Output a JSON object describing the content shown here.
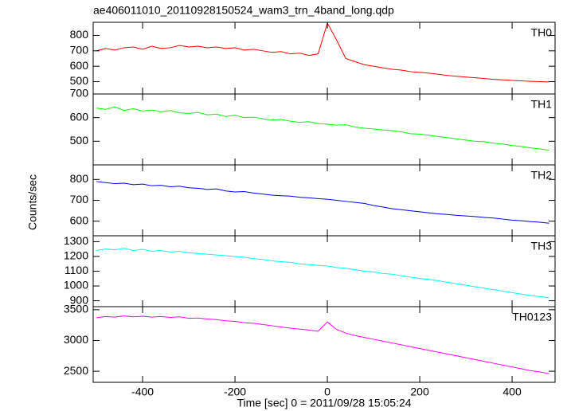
{
  "title": "ae406011010_20110928150524_wam3_trn_4band_long.qdp",
  "x_label": "Time [sec] 0 = 2011/09/28 15:05:24",
  "y_label": "Counts/sec",
  "chart_data": [
    {
      "type": "line",
      "label": "TH0",
      "color": "#ff0000",
      "x": [
        -500,
        -480,
        -460,
        -440,
        -420,
        -400,
        -380,
        -360,
        -340,
        -320,
        -300,
        -280,
        -260,
        -240,
        -220,
        -200,
        -180,
        -160,
        -140,
        -120,
        -100,
        -80,
        -60,
        -40,
        -20,
        0,
        20,
        40,
        60,
        80,
        100,
        120,
        140,
        160,
        180,
        200,
        220,
        240,
        260,
        280,
        300,
        320,
        340,
        360,
        380,
        400,
        420,
        440,
        460,
        480
      ],
      "values": [
        700,
        715,
        705,
        720,
        725,
        710,
        730,
        715,
        720,
        735,
        725,
        730,
        720,
        725,
        715,
        720,
        705,
        710,
        700,
        690,
        695,
        680,
        685,
        670,
        680,
        880,
        770,
        650,
        630,
        610,
        600,
        590,
        580,
        575,
        565,
        560,
        555,
        548,
        540,
        535,
        530,
        525,
        520,
        515,
        512,
        508,
        505,
        502,
        500,
        498
      ],
      "xlim": [
        -507,
        493
      ],
      "xticks": [
        -400,
        -200,
        0,
        200,
        400
      ],
      "ylim": [
        420,
        885
      ],
      "yticks": [
        500,
        600,
        700,
        800
      ]
    },
    {
      "type": "line",
      "label": "TH1",
      "color": "#00ff00",
      "x": [
        -500,
        -480,
        -460,
        -440,
        -420,
        -400,
        -380,
        -360,
        -340,
        -320,
        -300,
        -280,
        -260,
        -240,
        -220,
        -200,
        -180,
        -160,
        -140,
        -120,
        -100,
        -80,
        -60,
        -40,
        -20,
        0,
        20,
        40,
        60,
        80,
        100,
        120,
        140,
        160,
        180,
        200,
        220,
        240,
        260,
        280,
        300,
        320,
        340,
        360,
        380,
        400,
        420,
        440,
        460,
        480
      ],
      "values": [
        640,
        635,
        645,
        630,
        638,
        628,
        632,
        625,
        630,
        620,
        618,
        622,
        612,
        615,
        605,
        610,
        600,
        602,
        595,
        590,
        592,
        585,
        580,
        583,
        575,
        572,
        568,
        570,
        560,
        555,
        552,
        548,
        545,
        540,
        532,
        530,
        525,
        520,
        515,
        510,
        505,
        500,
        498,
        492,
        488,
        482,
        478,
        472,
        468,
        462
      ],
      "xlim": [
        -507,
        493
      ],
      "xticks": [
        -400,
        -200,
        0,
        200,
        400
      ],
      "ylim": [
        400,
        700
      ],
      "yticks": [
        500,
        600,
        700
      ]
    },
    {
      "type": "line",
      "label": "TH2",
      "color": "#0000ff",
      "x": [
        -500,
        -480,
        -460,
        -440,
        -420,
        -400,
        -380,
        -360,
        -340,
        -320,
        -300,
        -280,
        -260,
        -240,
        -220,
        -200,
        -180,
        -160,
        -140,
        -120,
        -100,
        -80,
        -60,
        -40,
        -20,
        0,
        20,
        40,
        60,
        80,
        100,
        120,
        140,
        160,
        180,
        200,
        220,
        240,
        260,
        280,
        300,
        320,
        340,
        360,
        380,
        400,
        420,
        440,
        460,
        480
      ],
      "values": [
        790,
        785,
        780,
        782,
        775,
        778,
        770,
        772,
        765,
        768,
        760,
        758,
        752,
        755,
        745,
        740,
        742,
        735,
        730,
        725,
        722,
        720,
        715,
        712,
        708,
        705,
        700,
        695,
        690,
        685,
        675,
        668,
        660,
        655,
        650,
        645,
        640,
        635,
        632,
        628,
        625,
        622,
        618,
        615,
        610,
        605,
        602,
        598,
        595,
        590
      ],
      "xlim": [
        -507,
        493
      ],
      "xticks": [
        -400,
        -200,
        0,
        200,
        400
      ],
      "ylim": [
        530,
        870
      ],
      "yticks": [
        600,
        700,
        800
      ]
    },
    {
      "type": "line",
      "label": "TH3",
      "color": "#00ffff",
      "x": [
        -500,
        -480,
        -460,
        -440,
        -420,
        -400,
        -380,
        -360,
        -340,
        -320,
        -300,
        -280,
        -260,
        -240,
        -220,
        -200,
        -180,
        -160,
        -140,
        -120,
        -100,
        -80,
        -60,
        -40,
        -20,
        0,
        20,
        40,
        60,
        80,
        100,
        120,
        140,
        160,
        180,
        200,
        220,
        240,
        260,
        280,
        300,
        320,
        340,
        360,
        380,
        400,
        420,
        440,
        460,
        480
      ],
      "values": [
        1240,
        1250,
        1245,
        1255,
        1240,
        1248,
        1235,
        1240,
        1230,
        1235,
        1225,
        1220,
        1215,
        1210,
        1205,
        1200,
        1195,
        1185,
        1180,
        1170,
        1165,
        1160,
        1150,
        1145,
        1140,
        1135,
        1125,
        1120,
        1110,
        1100,
        1095,
        1085,
        1080,
        1070,
        1060,
        1050,
        1045,
        1035,
        1025,
        1015,
        1005,
        995,
        985,
        975,
        965,
        955,
        945,
        935,
        928,
        920
      ],
      "xlim": [
        -507,
        493
      ],
      "xticks": [
        -400,
        -200,
        0,
        200,
        400
      ],
      "ylim": [
        860,
        1340
      ],
      "yticks": [
        900,
        1000,
        1100,
        1200,
        1300
      ]
    },
    {
      "type": "line",
      "label": "TH0123",
      "color": "#ff00ff",
      "x": [
        -500,
        -480,
        -460,
        -440,
        -420,
        -400,
        -380,
        -360,
        -340,
        -320,
        -300,
        -280,
        -260,
        -240,
        -220,
        -200,
        -180,
        -160,
        -140,
        -120,
        -100,
        -80,
        -60,
        -40,
        -20,
        0,
        20,
        40,
        60,
        80,
        100,
        120,
        140,
        160,
        180,
        200,
        220,
        240,
        260,
        280,
        300,
        320,
        340,
        360,
        380,
        400,
        420,
        440,
        460,
        480
      ],
      "values": [
        3370,
        3390,
        3380,
        3400,
        3385,
        3395,
        3380,
        3390,
        3375,
        3385,
        3360,
        3365,
        3350,
        3340,
        3320,
        3310,
        3290,
        3280,
        3260,
        3240,
        3220,
        3200,
        3185,
        3170,
        3150,
        3300,
        3180,
        3120,
        3080,
        3050,
        3020,
        2990,
        2960,
        2930,
        2900,
        2870,
        2840,
        2810,
        2780,
        2750,
        2720,
        2690,
        2660,
        2630,
        2600,
        2570,
        2540,
        2510,
        2490,
        2460
      ],
      "xlim": [
        -507,
        493
      ],
      "xticks": [
        -400,
        -200,
        0,
        200,
        400
      ],
      "ylim": [
        2320,
        3550
      ],
      "yticks": [
        2500,
        3000,
        3500
      ]
    }
  ]
}
